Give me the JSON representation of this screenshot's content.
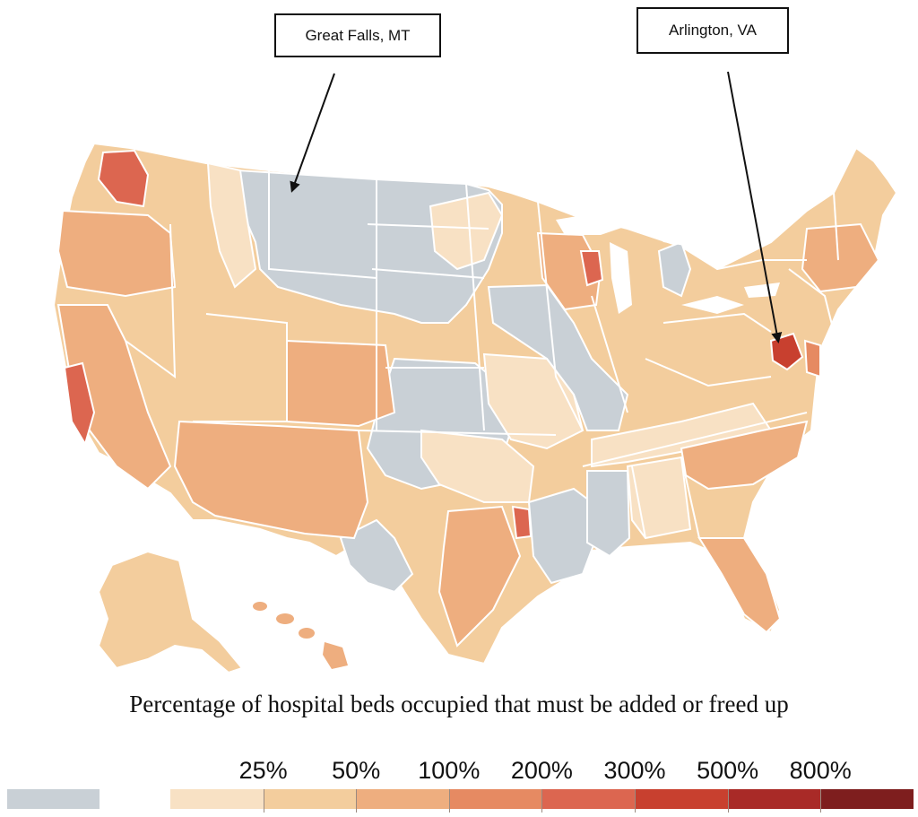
{
  "annotations": [
    {
      "id": "greatfalls",
      "label": "Great Falls, MT"
    },
    {
      "id": "arlington",
      "label": "Arlington, VA"
    }
  ],
  "map_title": "Percentage of hospital beds occupied that must be added or freed up",
  "legend": {
    "no_data_color": "#c9d0d6",
    "bins": [
      {
        "label": "",
        "color": "#f8e1c4"
      },
      {
        "label": "25%",
        "color": "#f3cd9d"
      },
      {
        "label": "50%",
        "color": "#eeae7f"
      },
      {
        "label": "100%",
        "color": "#e68a62"
      },
      {
        "label": "200%",
        "color": "#dc6650"
      },
      {
        "label": "300%",
        "color": "#c8402f"
      },
      {
        "label": "500%",
        "color": "#a92a27"
      },
      {
        "label": "800%",
        "color": "#7e1e1e"
      }
    ]
  },
  "colors": {
    "grey": "#c9d0d6",
    "light": "#f8e1c4",
    "pale": "#f3cd9d",
    "mid": "#eeae7f",
    "orange": "#e68a62",
    "red": "#dc6650",
    "border": "#ffffff"
  }
}
